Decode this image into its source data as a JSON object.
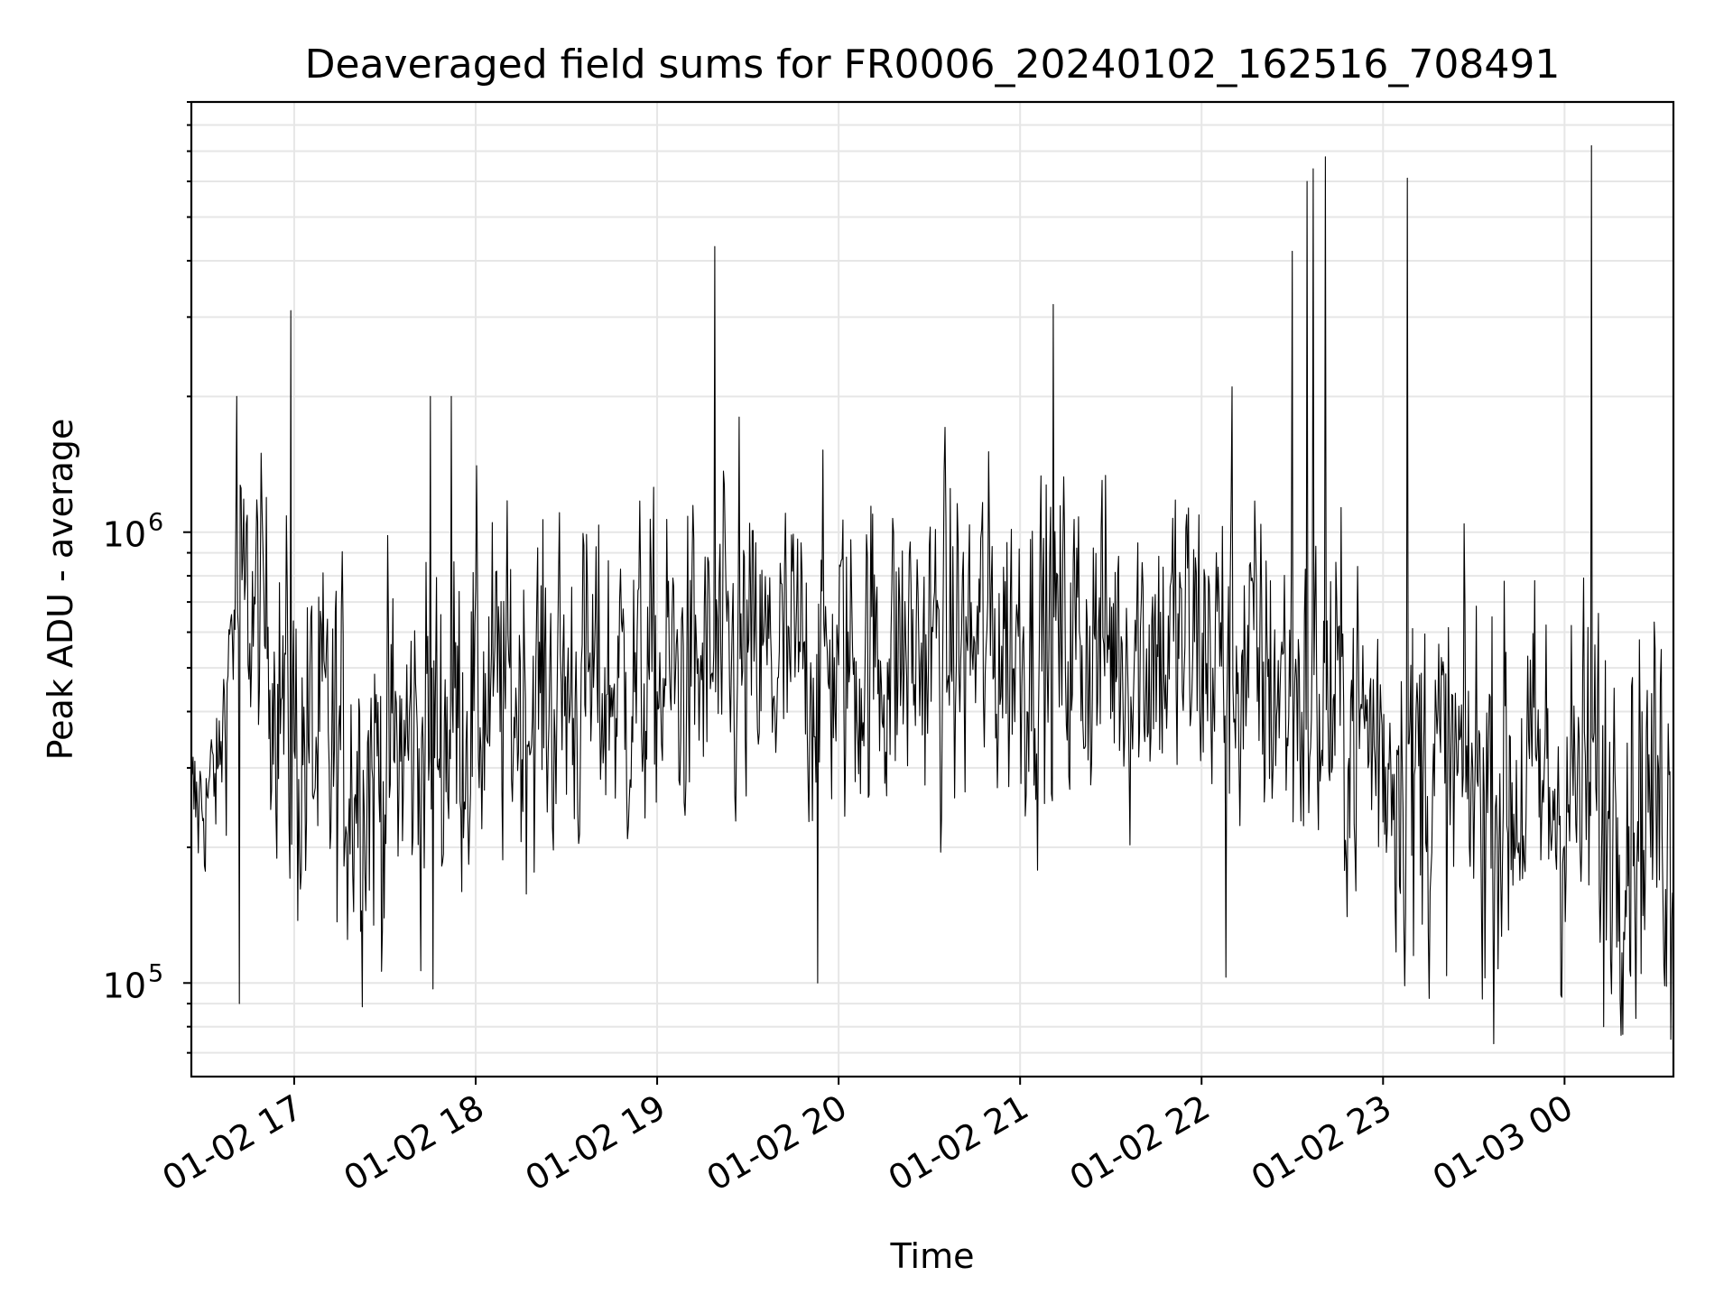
{
  "chart_data": {
    "type": "line",
    "title": "Deaveraged field sums for FR0006_20240102_162516_708491",
    "xlabel": "Time",
    "ylabel": "Peak ADU - average",
    "yscale": "log",
    "ylim": [
      62000,
      9000000
    ],
    "xlim": [
      "2024-01-02 16:26",
      "2024-01-03 00:36"
    ],
    "grid": "on (major and minor)",
    "legend": "none",
    "line_color": "#000000",
    "x_ticks": [
      {
        "label": "01-02 17",
        "t": "2024-01-02 17:00"
      },
      {
        "label": "01-02 18",
        "t": "2024-01-02 18:00"
      },
      {
        "label": "01-02 19",
        "t": "2024-01-02 19:00"
      },
      {
        "label": "01-02 20",
        "t": "2024-01-02 20:00"
      },
      {
        "label": "01-02 21",
        "t": "2024-01-02 21:00"
      },
      {
        "label": "01-02 22",
        "t": "2024-01-02 22:00"
      },
      {
        "label": "01-02 23",
        "t": "2024-01-02 23:00"
      },
      {
        "label": "01-03 00",
        "t": "2024-01-03 00:00"
      }
    ],
    "y_ticks": [
      {
        "base": "10",
        "exp": "5",
        "value": 100000
      },
      {
        "base": "10",
        "exp": "6",
        "value": 1000000
      }
    ],
    "series": [
      {
        "x_start": "2024-01-02 16:26",
        "x_end": "2024-01-03 00:36",
        "segments": [
          {
            "t": "2024-01-02 16:26",
            "median": 230000,
            "spread": 0.16
          },
          {
            "t": "2024-01-02 16:35",
            "median": 290000,
            "spread": 0.12
          },
          {
            "t": "2024-01-02 16:40",
            "median": 700000,
            "spread": 0.25
          },
          {
            "t": "2024-01-02 16:50",
            "median": 650000,
            "spread": 0.25
          },
          {
            "t": "2024-01-02 17:00",
            "median": 330000,
            "spread": 0.33
          },
          {
            "t": "2024-01-02 17:30",
            "median": 300000,
            "spread": 0.33
          },
          {
            "t": "2024-01-02 18:00",
            "median": 420000,
            "spread": 0.3
          },
          {
            "t": "2024-01-02 19:00",
            "median": 470000,
            "spread": 0.28
          },
          {
            "t": "2024-01-02 20:00",
            "median": 520000,
            "spread": 0.28
          },
          {
            "t": "2024-01-02 21:00",
            "median": 580000,
            "spread": 0.3
          },
          {
            "t": "2024-01-02 22:00",
            "median": 560000,
            "spread": 0.3
          },
          {
            "t": "2024-01-02 22:40",
            "median": 420000,
            "spread": 0.3
          },
          {
            "t": "2024-01-02 23:20",
            "median": 280000,
            "spread": 0.33
          },
          {
            "t": "2024-01-03 00:36",
            "median": 250000,
            "spread": 0.33
          }
        ],
        "spikes": [
          {
            "t": "2024-01-02 16:41",
            "value": 2000000
          },
          {
            "t": "2024-01-02 16:42",
            "value": 90000
          },
          {
            "t": "2024-01-02 16:59",
            "value": 3100000
          },
          {
            "t": "2024-01-02 17:45",
            "value": 2000000
          },
          {
            "t": "2024-01-02 17:46",
            "value": 97000
          },
          {
            "t": "2024-01-02 17:52",
            "value": 2000000
          },
          {
            "t": "2024-01-02 19:19",
            "value": 4300000
          },
          {
            "t": "2024-01-02 19:27",
            "value": 1800000
          },
          {
            "t": "2024-01-02 19:53",
            "value": 100000
          },
          {
            "t": "2024-01-02 21:11",
            "value": 3200000
          },
          {
            "t": "2024-01-02 22:08",
            "value": 103000
          },
          {
            "t": "2024-01-02 22:10",
            "value": 2100000
          },
          {
            "t": "2024-01-02 22:30",
            "value": 4200000
          },
          {
            "t": "2024-01-02 22:35",
            "value": 6000000
          },
          {
            "t": "2024-01-02 22:37",
            "value": 6400000
          },
          {
            "t": "2024-01-02 22:41",
            "value": 6800000
          },
          {
            "t": "2024-01-02 23:08",
            "value": 6100000
          },
          {
            "t": "2024-01-02 23:10",
            "value": 115000
          },
          {
            "t": "2024-01-03 00:09",
            "value": 7200000
          },
          {
            "t": "2024-01-03 00:13",
            "value": 80000
          },
          {
            "t": "2024-01-03 00:35",
            "value": 75000
          }
        ]
      }
    ]
  }
}
